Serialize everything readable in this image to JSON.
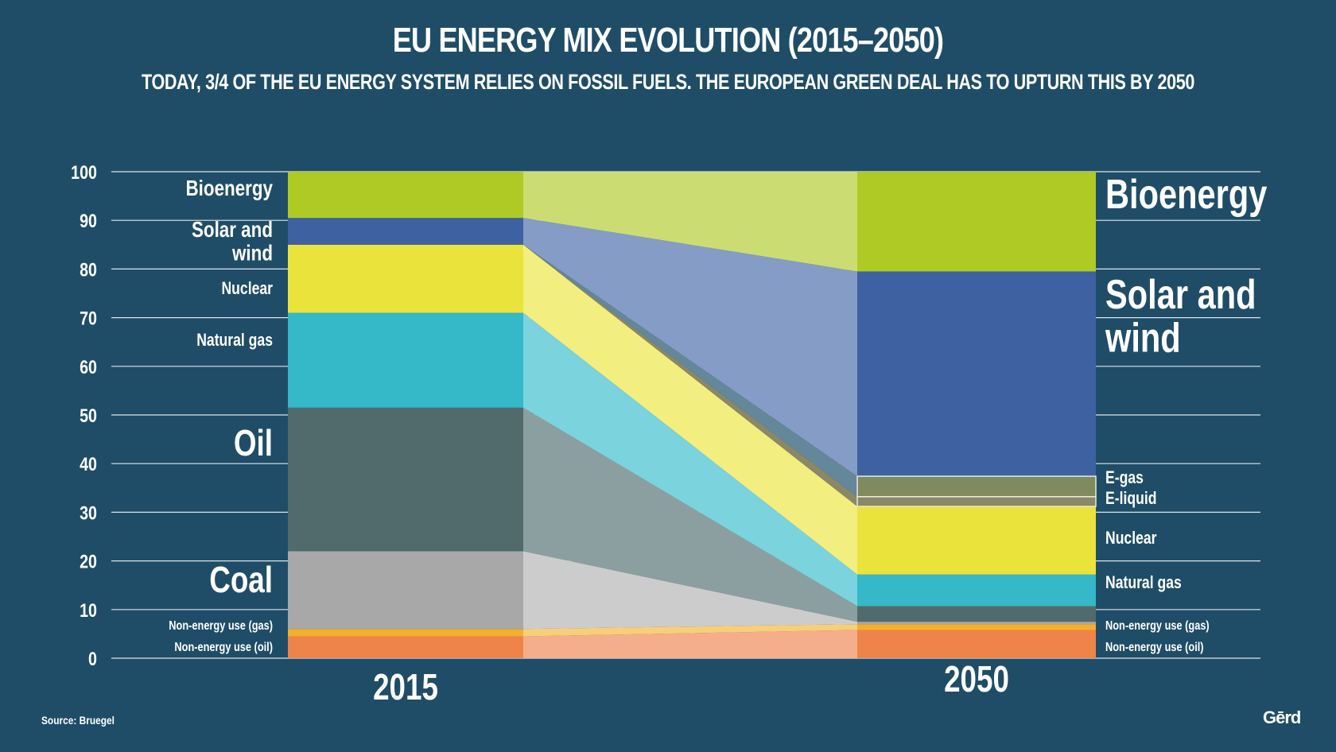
{
  "title": "EU ENERGY MIX EVOLUTION (2015–2050)",
  "subtitle": "TODAY, 3/4 OF THE EU ENERGY SYSTEM RELIES ON FOSSIL FUELS. THE EUROPEAN GREEN DEAL HAS TO UPTURN THIS BY 2050",
  "source": "Source: Bruegel",
  "brand": "Gērd",
  "chart_data": {
    "type": "bar",
    "stacked": true,
    "categories": [
      "2015",
      "2050"
    ],
    "ylim": [
      0,
      100
    ],
    "yticks": [
      0,
      10,
      20,
      30,
      40,
      50,
      60,
      70,
      80,
      90,
      100
    ],
    "grid": true,
    "series": [
      {
        "name": "Non-energy use (oil)",
        "values": [
          4.5,
          5.8
        ],
        "color": "#ef844a",
        "flow_color": "#f5ae8c"
      },
      {
        "name": "Non-energy use (gas)",
        "values": [
          1.5,
          1.2
        ],
        "color": "#f4b02c",
        "flow_color": "#f8cf79"
      },
      {
        "name": "Coal",
        "values": [
          16,
          0.5
        ],
        "color": "#a8a8a8",
        "flow_color": "#cccccc"
      },
      {
        "name": "Oil",
        "values": [
          29.5,
          3.2
        ],
        "color": "#516a6c",
        "flow_color": "#8c9fa0"
      },
      {
        "name": "Natural gas",
        "values": [
          19.5,
          6.5
        ],
        "color": "#35b8c8",
        "flow_color": "#7ad3dd"
      },
      {
        "name": "Nuclear",
        "values": [
          14,
          14
        ],
        "color": "#eae33c",
        "flow_color": "#f3ee80"
      },
      {
        "name": "E-liquid",
        "values": [
          0,
          2
        ],
        "color": "#8a8866",
        "flow_color": "#8a8866"
      },
      {
        "name": "E-gas",
        "values": [
          0,
          4.2
        ],
        "color": "#7f8a5e",
        "flow_color": "#648799"
      },
      {
        "name": "Solar and wind",
        "values": [
          5.5,
          42.1
        ],
        "color": "#3e61a1",
        "flow_color": "#859cc6"
      },
      {
        "name": "Bioenergy",
        "values": [
          9.5,
          20.5
        ],
        "color": "#afca24",
        "flow_color": "#cbdd72"
      }
    ],
    "labels_2015": [
      {
        "text": "Bioenergy",
        "size": "m"
      },
      {
        "text": "Solar and wind",
        "size": "m"
      },
      {
        "text": "Nuclear",
        "size": "s"
      },
      {
        "text": "Natural gas",
        "size": "s"
      },
      {
        "text": "Oil",
        "size": "l"
      },
      {
        "text": "Coal",
        "size": "l"
      },
      {
        "text": "Non-energy use (gas)",
        "size": "xs"
      },
      {
        "text": "Non-energy use (oil)",
        "size": "xs"
      }
    ],
    "labels_2050": [
      {
        "text": "Bioenergy",
        "size": "xl"
      },
      {
        "text": "Solar and wind",
        "size": "xl"
      },
      {
        "text": "E-gas",
        "size": "s"
      },
      {
        "text": "E-liquid",
        "size": "s"
      },
      {
        "text": "Nuclear",
        "size": "s"
      },
      {
        "text": "Natural gas",
        "size": "s"
      },
      {
        "text": "Non-energy use (gas)",
        "size": "xs"
      },
      {
        "text": "Non-energy use (oil)",
        "size": "xs"
      }
    ]
  }
}
